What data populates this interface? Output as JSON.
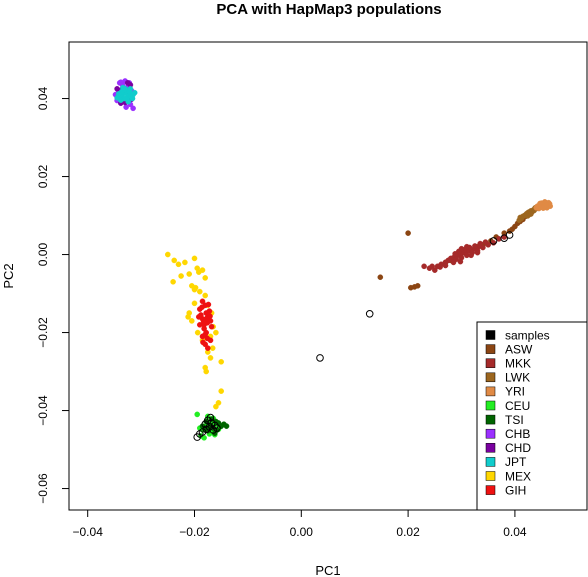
{
  "chart_data": {
    "type": "scatter",
    "title": "PCA with HapMap3 populations",
    "xlabel": "PC1",
    "ylabel": "PC2",
    "xlim": [
      -0.0435,
      0.0535
    ],
    "ylim": [
      -0.0655,
      0.0545
    ],
    "x_ticks": [
      -0.04,
      -0.02,
      0.0,
      0.02,
      0.04
    ],
    "x_tick_labels": [
      "−0.04",
      "−0.02",
      "0.00",
      "0.02",
      "0.04"
    ],
    "y_ticks": [
      -0.06,
      -0.04,
      -0.02,
      0.0,
      0.02,
      0.04
    ],
    "y_tick_labels": [
      "−0.06",
      "−0.04",
      "−0.02",
      "0.00",
      "0.02",
      "0.04"
    ],
    "grid": false,
    "legend_position": "bottom-right",
    "series": [
      {
        "name": "samples",
        "color": "#000000",
        "marker": "open-circle",
        "points": [
          [
            -0.0172,
            -0.0442
          ],
          [
            -0.0168,
            -0.0432
          ],
          [
            -0.0178,
            -0.0448
          ],
          [
            -0.0162,
            -0.0438
          ],
          [
            -0.0185,
            -0.0455
          ],
          [
            -0.0175,
            -0.0425
          ],
          [
            -0.0158,
            -0.0445
          ],
          [
            -0.019,
            -0.046
          ],
          [
            -0.0165,
            -0.045
          ],
          [
            -0.018,
            -0.0435
          ],
          [
            -0.0195,
            -0.0468
          ],
          [
            -0.017,
            -0.0418
          ],
          [
            0.0035,
            -0.0265
          ],
          [
            0.0128,
            -0.0152
          ],
          [
            0.036,
            0.0035
          ],
          [
            0.039,
            0.005
          ],
          [
            0.038,
            0.0042
          ]
        ]
      },
      {
        "name": "ASW",
        "color": "#8B4513",
        "marker": "filled-circle",
        "points": [
          [
            0.0148,
            -0.0058
          ],
          [
            0.0212,
            -0.0083
          ],
          [
            0.0218,
            -0.008
          ],
          [
            0.0205,
            -0.0085
          ],
          [
            0.02,
            0.0055
          ],
          [
            0.029,
            -0.0005
          ],
          [
            0.031,
            0.0008
          ],
          [
            0.034,
            0.0025
          ],
          [
            0.0355,
            0.0035
          ],
          [
            0.038,
            0.0055
          ],
          [
            0.04,
            0.0072
          ],
          [
            0.0395,
            0.0065
          ],
          [
            0.041,
            0.0085
          ],
          [
            0.042,
            0.0098
          ],
          [
            0.0415,
            0.009
          ],
          [
            0.039,
            0.006
          ],
          [
            0.033,
            0.002
          ],
          [
            0.03,
            0.0003
          ],
          [
            0.028,
            -0.0015
          ],
          [
            0.027,
            -0.002
          ],
          [
            0.0365,
            0.0045
          ],
          [
            0.0345,
            0.003
          ],
          [
            0.0405,
            0.008
          ]
        ]
      },
      {
        "name": "MKK",
        "color": "#A52A2A",
        "marker": "filled-circle",
        "points": [
          [
            0.024,
            -0.0035
          ],
          [
            0.0255,
            -0.003
          ],
          [
            0.0262,
            -0.0025
          ],
          [
            0.027,
            -0.002
          ],
          [
            0.0275,
            -0.0015
          ],
          [
            0.028,
            -0.001
          ],
          [
            0.0285,
            -0.0008
          ],
          [
            0.029,
            -0.0005
          ],
          [
            0.0295,
            0.0
          ],
          [
            0.03,
            0.0002
          ],
          [
            0.0305,
            0.0005
          ],
          [
            0.031,
            0.0008
          ],
          [
            0.0315,
            0.001
          ],
          [
            0.032,
            0.0012
          ],
          [
            0.0325,
            0.0015
          ],
          [
            0.033,
            0.0018
          ],
          [
            0.0335,
            0.0022
          ],
          [
            0.029,
            -0.0012
          ],
          [
            0.03,
            -0.0008
          ],
          [
            0.031,
            -0.0002
          ],
          [
            0.032,
            0.0005
          ],
          [
            0.033,
            0.001
          ],
          [
            0.034,
            0.0018
          ],
          [
            0.035,
            0.0025
          ],
          [
            0.0295,
            0.0008
          ],
          [
            0.0305,
            0.0012
          ],
          [
            0.0315,
            0.0018
          ],
          [
            0.0325,
            0.0022
          ],
          [
            0.0335,
            0.0028
          ],
          [
            0.0345,
            0.0032
          ],
          [
            0.027,
            -0.0028
          ],
          [
            0.026,
            -0.0032
          ],
          [
            0.025,
            -0.004
          ],
          [
            0.0245,
            -0.003
          ],
          [
            0.03,
            0.0015
          ],
          [
            0.031,
            0.002
          ],
          [
            0.0285,
            -0.002
          ],
          [
            0.023,
            -0.003
          ],
          [
            0.036,
            0.003
          ],
          [
            0.037,
            0.004
          ],
          [
            0.038,
            0.0045
          ],
          [
            0.033,
            0.0005
          ],
          [
            0.0318,
            -0.0002
          ],
          [
            0.0298,
            -0.0018
          ],
          [
            0.0288,
            0.0002
          ]
        ]
      },
      {
        "name": "LWK",
        "color": "#9C661F",
        "marker": "filled-circle",
        "points": [
          [
            0.041,
            0.0095
          ],
          [
            0.042,
            0.0102
          ],
          [
            0.0425,
            0.0108
          ],
          [
            0.043,
            0.0112
          ],
          [
            0.0435,
            0.0115
          ],
          [
            0.044,
            0.0118
          ],
          [
            0.0415,
            0.0098
          ],
          [
            0.0422,
            0.0105
          ],
          [
            0.0428,
            0.011
          ],
          [
            0.0418,
            0.01
          ],
          [
            0.0432,
            0.0109
          ],
          [
            0.0438,
            0.012
          ],
          [
            0.0426,
            0.0102
          ],
          [
            0.0412,
            0.0092
          ],
          [
            0.0445,
            0.0122
          ],
          [
            0.0408,
            0.0088
          ],
          [
            0.0436,
            0.0113
          ],
          [
            0.0424,
            0.0099
          ],
          [
            0.043,
            0.0104
          ]
        ]
      },
      {
        "name": "YRI",
        "color": "#E08A45",
        "marker": "filled-circle",
        "points": [
          [
            0.044,
            0.012
          ],
          [
            0.0445,
            0.0125
          ],
          [
            0.045,
            0.0128
          ],
          [
            0.0455,
            0.013
          ],
          [
            0.046,
            0.0132
          ],
          [
            0.0448,
            0.0122
          ],
          [
            0.0452,
            0.0126
          ],
          [
            0.0458,
            0.0128
          ],
          [
            0.0462,
            0.0125
          ],
          [
            0.0465,
            0.013
          ],
          [
            0.0445,
            0.0118
          ],
          [
            0.0455,
            0.0122
          ],
          [
            0.046,
            0.012
          ],
          [
            0.045,
            0.0132
          ],
          [
            0.0442,
            0.0124
          ],
          [
            0.0466,
            0.0124
          ],
          [
            0.0456,
            0.0135
          ],
          [
            0.0448,
            0.0128
          ],
          [
            0.0463,
            0.0133
          ],
          [
            0.0453,
            0.0119
          ],
          [
            0.0459,
            0.0127
          ],
          [
            0.0447,
            0.0131
          ]
        ]
      },
      {
        "name": "CEU",
        "color": "#22EE22",
        "marker": "filled-circle",
        "points": [
          [
            -0.0178,
            -0.044
          ],
          [
            -0.0168,
            -0.043
          ],
          [
            -0.0185,
            -0.045
          ],
          [
            -0.016,
            -0.0435
          ],
          [
            -0.0172,
            -0.046
          ],
          [
            -0.019,
            -0.0445
          ],
          [
            -0.0155,
            -0.0448
          ],
          [
            -0.0182,
            -0.047
          ],
          [
            -0.0165,
            -0.042
          ],
          [
            -0.0175,
            -0.0415
          ],
          [
            -0.0195,
            -0.041
          ],
          [
            -0.015,
            -0.044
          ],
          [
            -0.0188,
            -0.0465
          ],
          [
            -0.017,
            -0.0455
          ],
          [
            -0.0162,
            -0.0462
          ]
        ]
      },
      {
        "name": "TSI",
        "color": "#006400",
        "marker": "filled-circle",
        "points": [
          [
            -0.017,
            -0.0438
          ],
          [
            -0.016,
            -0.0428
          ],
          [
            -0.018,
            -0.0448
          ],
          [
            -0.0165,
            -0.0445
          ],
          [
            -0.0155,
            -0.0432
          ],
          [
            -0.0175,
            -0.0452
          ],
          [
            -0.015,
            -0.044
          ],
          [
            -0.0185,
            -0.044
          ],
          [
            -0.0168,
            -0.0422
          ],
          [
            -0.0158,
            -0.045
          ],
          [
            -0.0145,
            -0.0435
          ],
          [
            -0.0178,
            -0.0428
          ],
          [
            -0.0162,
            -0.0458
          ],
          [
            -0.014,
            -0.044
          ],
          [
            -0.0172,
            -0.0445
          ]
        ]
      },
      {
        "name": "CHB",
        "color": "#9B30FF",
        "marker": "filled-circle",
        "points": [
          [
            -0.034,
            0.044
          ],
          [
            -0.033,
            0.0445
          ],
          [
            -0.0325,
            0.043
          ],
          [
            -0.032,
            0.0385
          ],
          [
            -0.0345,
            0.0395
          ],
          [
            -0.0335,
            0.0435
          ],
          [
            -0.0318,
            0.042
          ],
          [
            -0.0342,
            0.042
          ],
          [
            -0.0328,
            0.0378
          ],
          [
            -0.0315,
            0.0375
          ],
          [
            -0.0338,
            0.0442
          ],
          [
            -0.0322,
            0.044
          ],
          [
            -0.0348,
            0.041
          ]
        ]
      },
      {
        "name": "CHD",
        "color": "#7A00A0",
        "marker": "filled-circle",
        "points": [
          [
            -0.0335,
            0.0425
          ],
          [
            -0.0325,
            0.044
          ],
          [
            -0.033,
            0.039
          ],
          [
            -0.0318,
            0.0398
          ],
          [
            -0.0345,
            0.0425
          ],
          [
            -0.032,
            0.0435
          ],
          [
            -0.0338,
            0.0388
          ]
        ]
      },
      {
        "name": "JPT",
        "color": "#11CCCC",
        "marker": "filled-circle",
        "points": [
          [
            -0.0335,
            0.041
          ],
          [
            -0.033,
            0.0415
          ],
          [
            -0.0325,
            0.0408
          ],
          [
            -0.032,
            0.0412
          ],
          [
            -0.034,
            0.0405
          ],
          [
            -0.0328,
            0.042
          ],
          [
            -0.0332,
            0.04
          ],
          [
            -0.0318,
            0.0405
          ],
          [
            -0.0336,
            0.0418
          ],
          [
            -0.0322,
            0.0418
          ],
          [
            -0.0342,
            0.0412
          ],
          [
            -0.0326,
            0.0398
          ],
          [
            -0.0315,
            0.041
          ],
          [
            -0.0338,
            0.0396
          ],
          [
            -0.033,
            0.0425
          ],
          [
            -0.032,
            0.0425
          ],
          [
            -0.0345,
            0.0402
          ],
          [
            -0.0312,
            0.0415
          ],
          [
            -0.0334,
            0.0428
          ],
          [
            -0.0324,
            0.0392
          ],
          [
            -0.0316,
            0.04
          ]
        ]
      },
      {
        "name": "MEX",
        "color": "#FFD700",
        "marker": "filled-circle",
        "points": [
          [
            -0.025,
            0.0
          ],
          [
            -0.0238,
            -0.0015
          ],
          [
            -0.023,
            -0.0025
          ],
          [
            -0.0218,
            -0.002
          ],
          [
            -0.02,
            -0.001
          ],
          [
            -0.0195,
            -0.0035
          ],
          [
            -0.0192,
            -0.0045
          ],
          [
            -0.0185,
            -0.004
          ],
          [
            -0.018,
            -0.006
          ],
          [
            -0.021,
            -0.005
          ],
          [
            -0.0205,
            -0.008
          ],
          [
            -0.02,
            -0.009
          ],
          [
            -0.019,
            -0.0095
          ],
          [
            -0.018,
            -0.0105
          ],
          [
            -0.02,
            -0.0125
          ],
          [
            -0.021,
            -0.015
          ],
          [
            -0.0205,
            -0.017
          ],
          [
            -0.0175,
            -0.013
          ],
          [
            -0.0168,
            -0.015
          ],
          [
            -0.0165,
            -0.0185
          ],
          [
            -0.016,
            -0.02
          ],
          [
            -0.017,
            -0.021
          ],
          [
            -0.0185,
            -0.022
          ],
          [
            -0.0175,
            -0.025
          ],
          [
            -0.017,
            -0.0265
          ],
          [
            -0.015,
            -0.0275
          ],
          [
            -0.018,
            -0.029
          ],
          [
            -0.0178,
            -0.03
          ],
          [
            -0.015,
            -0.035
          ],
          [
            -0.0155,
            -0.038
          ],
          [
            -0.016,
            -0.039
          ],
          [
            -0.0198,
            -0.0085
          ],
          [
            -0.0225,
            -0.0055
          ],
          [
            -0.024,
            -0.007
          ],
          [
            -0.0212,
            -0.016
          ],
          [
            -0.0194,
            -0.02
          ],
          [
            -0.0166,
            -0.024
          ]
        ]
      },
      {
        "name": "GIH",
        "color": "#EE1111",
        "marker": "filled-circle",
        "points": [
          [
            -0.0185,
            -0.012
          ],
          [
            -0.018,
            -0.013
          ],
          [
            -0.0178,
            -0.015
          ],
          [
            -0.019,
            -0.014
          ],
          [
            -0.0175,
            -0.016
          ],
          [
            -0.0185,
            -0.0165
          ],
          [
            -0.017,
            -0.017
          ],
          [
            -0.0182,
            -0.018
          ],
          [
            -0.019,
            -0.018
          ],
          [
            -0.0178,
            -0.02
          ],
          [
            -0.0185,
            -0.021
          ],
          [
            -0.018,
            -0.023
          ],
          [
            -0.0175,
            -0.024
          ],
          [
            -0.017,
            -0.022
          ],
          [
            -0.0188,
            -0.0155
          ],
          [
            -0.0172,
            -0.0145
          ],
          [
            -0.0182,
            -0.019
          ],
          [
            -0.0176,
            -0.0175
          ],
          [
            -0.0168,
            -0.0185
          ],
          [
            -0.0192,
            -0.016
          ],
          [
            -0.0186,
            -0.0135
          ],
          [
            -0.0174,
            -0.0128
          ],
          [
            -0.018,
            -0.0205
          ],
          [
            -0.0184,
            -0.0225
          ],
          [
            -0.0178,
            -0.0165
          ],
          [
            -0.0183,
            -0.0172
          ],
          [
            -0.0171,
            -0.0158
          ],
          [
            -0.0176,
            -0.0215
          ]
        ]
      }
    ]
  }
}
